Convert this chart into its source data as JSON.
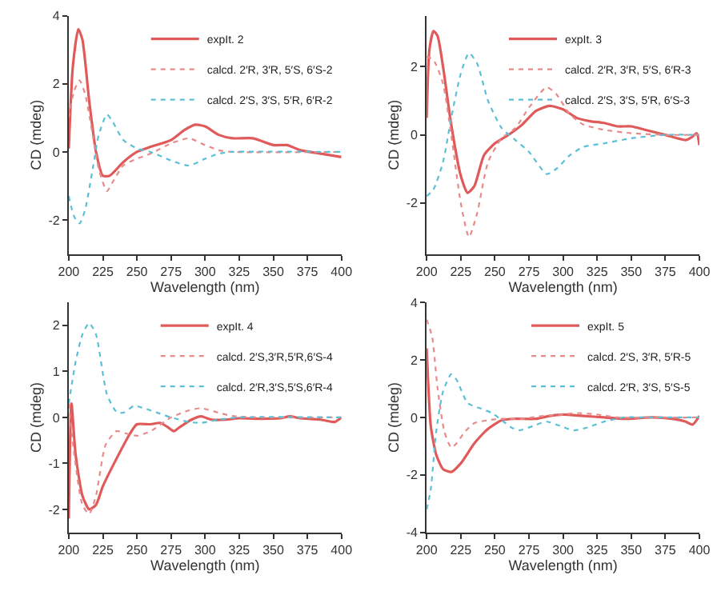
{
  "chart_data": [
    {
      "type": "line",
      "xlabel": "Wavelength (nm)",
      "ylabel": "CD (mdeg)",
      "xlim": [
        200,
        400
      ],
      "xticks": [
        200,
        225,
        250,
        275,
        300,
        325,
        350,
        375,
        400
      ],
      "ylim": [
        -3,
        4
      ],
      "yticks": [
        -2,
        0,
        2,
        4
      ],
      "legend": "top right",
      "series": [
        {
          "name": "expIt. 2",
          "color": "#e05a5a",
          "line_style": "solid",
          "x": [
            200,
            203,
            207,
            210,
            215,
            220,
            225,
            230,
            240,
            250,
            260,
            275,
            285,
            293,
            300,
            310,
            320,
            335,
            350,
            360,
            370,
            385,
            400
          ],
          "values": [
            0.1,
            2.5,
            3.6,
            3.3,
            1.5,
            0,
            -0.7,
            -0.7,
            -0.3,
            0,
            0.15,
            0.35,
            0.65,
            0.8,
            0.75,
            0.5,
            0.4,
            0.4,
            0.2,
            0.2,
            0.05,
            -0.05,
            -0.15
          ]
        },
        {
          "name": "calcd. 2′R, 3′R, 5′S, 6′S-2",
          "color": "#e88a8a",
          "line_style": "dotted",
          "x": [
            200,
            204,
            208,
            212,
            218,
            222,
            228,
            232,
            240,
            250,
            260,
            275,
            288,
            300,
            310,
            320,
            400
          ],
          "values": [
            1.0,
            1.8,
            2.1,
            1.7,
            0.4,
            -0.5,
            -1.15,
            -0.9,
            -0.4,
            -0.2,
            -0.05,
            0.25,
            0.4,
            0.2,
            0.05,
            0,
            0
          ]
        },
        {
          "name": "calcd. 2′S, 3′S, 5′R, 6′R-2",
          "color": "#5bbfd6",
          "line_style": "dotted",
          "x": [
            200,
            204,
            208,
            212,
            218,
            222,
            228,
            232,
            240,
            250,
            260,
            275,
            288,
            300,
            310,
            320,
            400
          ],
          "values": [
            -1.3,
            -1.9,
            -2.1,
            -1.7,
            -0.4,
            0.5,
            1.1,
            0.9,
            0.35,
            0.1,
            0,
            -0.25,
            -0.4,
            -0.2,
            -0.05,
            0,
            0
          ]
        }
      ]
    },
    {
      "type": "line",
      "xlabel": "Wavelength (nm)",
      "ylabel": "CD (mdeg)",
      "xlim": [
        200,
        400
      ],
      "xticks": [
        200,
        225,
        250,
        275,
        300,
        325,
        350,
        375,
        400
      ],
      "ylim": [
        -3.5,
        3.5
      ],
      "yticks": [
        -2,
        0,
        2
      ],
      "legend": "top right",
      "series": [
        {
          "name": "expIt. 3",
          "color": "#e05a5a",
          "line_style": "solid",
          "x": [
            200,
            202,
            205,
            208,
            212,
            218,
            225,
            230,
            235,
            242,
            250,
            260,
            270,
            280,
            290,
            300,
            310,
            320,
            330,
            340,
            350,
            360,
            375,
            390,
            395,
            398,
            400
          ],
          "values": [
            0.5,
            2.5,
            3.05,
            2.9,
            2,
            0.3,
            -1.2,
            -1.7,
            -1.5,
            -0.6,
            -0.25,
            0,
            0.3,
            0.7,
            0.85,
            0.75,
            0.5,
            0.4,
            0.35,
            0.25,
            0.25,
            0.15,
            0,
            -0.15,
            -0.05,
            0.05,
            -0.3
          ]
        },
        {
          "name": "calcd. 2′R, 3′R, 5′S, 6′R-3",
          "color": "#e88a8a",
          "line_style": "dotted",
          "x": [
            200,
            205,
            212,
            218,
            225,
            231,
            237,
            245,
            255,
            265,
            275,
            288,
            295,
            305,
            315,
            330,
            350,
            375,
            400
          ],
          "values": [
            2.3,
            2.2,
            1.5,
            0,
            -2.0,
            -3.0,
            -2.3,
            -0.8,
            -0.1,
            0.2,
            0.8,
            1.4,
            1.2,
            0.6,
            0.3,
            0.15,
            0.05,
            0,
            0
          ]
        },
        {
          "name": "calcd. 2′S, 3′S, 5′R, 6′S-3",
          "color": "#5bbfd6",
          "line_style": "dotted",
          "x": [
            200,
            205,
            212,
            218,
            225,
            231,
            237,
            245,
            255,
            265,
            275,
            288,
            295,
            305,
            315,
            330,
            350,
            375,
            400
          ],
          "values": [
            -1.8,
            -1.6,
            -0.8,
            0.5,
            1.8,
            2.4,
            2.1,
            1.0,
            0.2,
            -0.15,
            -0.5,
            -1.15,
            -1.0,
            -0.6,
            -0.35,
            -0.25,
            -0.1,
            0,
            0
          ]
        }
      ]
    },
    {
      "type": "line",
      "xlabel": "Wavelength (nm)",
      "ylabel": "CD (mdeg)",
      "xlim": [
        200,
        400
      ],
      "xticks": [
        200,
        225,
        250,
        275,
        300,
        325,
        350,
        375,
        400
      ],
      "ylim": [
        -2.5,
        2.5
      ],
      "yticks": [
        -2,
        -1,
        0,
        1,
        2
      ],
      "legend": "top right",
      "series": [
        {
          "name": "expIt. 4",
          "color": "#e05a5a",
          "line_style": "solid",
          "x": [
            200,
            202,
            205,
            210,
            215,
            220,
            225,
            235,
            245,
            250,
            260,
            267,
            272,
            277,
            282,
            290,
            297,
            305,
            315,
            325,
            340,
            355,
            362,
            370,
            385,
            395,
            400
          ],
          "values": [
            -2.2,
            0.3,
            -0.8,
            -1.7,
            -2.0,
            -1.9,
            -1.5,
            -0.9,
            -0.35,
            -0.15,
            -0.15,
            -0.12,
            -0.2,
            -0.3,
            -0.2,
            -0.05,
            0.02,
            -0.05,
            -0.05,
            -0.02,
            -0.03,
            -0.02,
            0.02,
            -0.02,
            -0.05,
            -0.1,
            0
          ]
        },
        {
          "name": "calcd. 2′S,3′R,5′R,6′S-4",
          "color": "#e88a8a",
          "line_style": "dotted",
          "x": [
            200,
            204,
            210,
            215,
            220,
            227,
            235,
            242,
            250,
            260,
            275,
            288,
            297,
            310,
            320,
            340,
            400
          ],
          "values": [
            0.3,
            -0.8,
            -1.9,
            -2.1,
            -1.7,
            -0.6,
            -0.3,
            -0.35,
            -0.4,
            -0.3,
            0,
            0.15,
            0.2,
            0.1,
            0.03,
            0,
            0
          ]
        },
        {
          "name": "calcd. 2′R,3′S,5′S,6′R-4",
          "color": "#5bbfd6",
          "line_style": "dotted",
          "x": [
            200,
            205,
            210,
            215,
            220,
            228,
            235,
            240,
            248,
            255,
            265,
            275,
            288,
            297,
            310,
            325,
            400
          ],
          "values": [
            0.3,
            1.2,
            1.8,
            2.05,
            1.8,
            0.5,
            0.12,
            0.1,
            0.25,
            0.2,
            0.1,
            0,
            -0.1,
            -0.12,
            -0.05,
            0,
            0
          ]
        }
      ]
    },
    {
      "type": "line",
      "xlabel": "Wavelength (nm)",
      "ylabel": "CD (mdeg)",
      "xlim": [
        200,
        400
      ],
      "xticks": [
        200,
        225,
        250,
        275,
        300,
        325,
        350,
        375,
        400
      ],
      "ylim": [
        -4,
        4
      ],
      "yticks": [
        -4,
        -2,
        0,
        2,
        4
      ],
      "legend": "top right",
      "series": [
        {
          "name": "expIt. 5",
          "color": "#e05a5a",
          "line_style": "solid",
          "x": [
            200,
            203,
            207,
            212,
            218,
            225,
            235,
            245,
            255,
            265,
            280,
            290,
            300,
            315,
            330,
            345,
            365,
            380,
            390,
            395,
            400
          ],
          "values": [
            2.4,
            -0.3,
            -1.3,
            -1.8,
            -1.9,
            -1.6,
            -0.9,
            -0.4,
            -0.1,
            -0.05,
            -0.05,
            0.05,
            0.1,
            0.05,
            0,
            -0.05,
            0,
            -0.05,
            -0.15,
            -0.25,
            0.05
          ]
        },
        {
          "name": "calcd. 2′S, 3′R, 5′R-5",
          "color": "#e88a8a",
          "line_style": "dotted",
          "x": [
            200,
            204,
            208,
            213,
            218,
            222,
            228,
            235,
            245,
            255,
            270,
            285,
            300,
            310,
            325,
            340,
            400
          ],
          "values": [
            3.4,
            2.8,
            1.0,
            -0.5,
            -1.05,
            -0.9,
            -0.5,
            -0.2,
            -0.1,
            -0.05,
            -0.05,
            0.05,
            0.1,
            0.15,
            0.1,
            0,
            0
          ]
        },
        {
          "name": "calcd. 2′R, 3′S, 5′S-5",
          "color": "#5bbfd6",
          "line_style": "dotted",
          "x": [
            200,
            203,
            207,
            212,
            218,
            222,
            230,
            240,
            248,
            255,
            262,
            268,
            278,
            288,
            298,
            308,
            318,
            330,
            345,
            360,
            400
          ],
          "values": [
            -3.2,
            -2.5,
            -0.5,
            0.9,
            1.5,
            1.3,
            0.5,
            0.3,
            0.15,
            -0.1,
            -0.35,
            -0.45,
            -0.3,
            -0.15,
            -0.3,
            -0.45,
            -0.35,
            -0.15,
            0,
            0,
            0
          ]
        }
      ]
    }
  ]
}
